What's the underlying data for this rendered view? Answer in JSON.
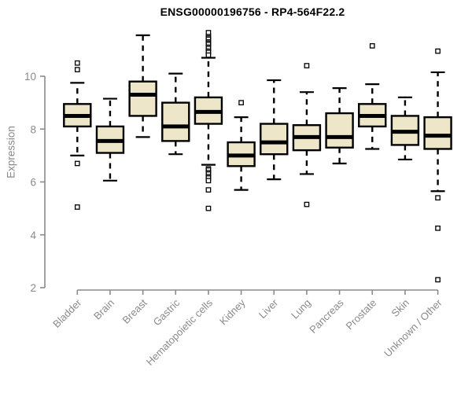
{
  "chart_data": {
    "type": "boxplot",
    "title": "ENSG00000196756 - RP4-564F22.2",
    "ylabel": "Expression",
    "xlabel": "",
    "yticks": [
      2,
      4,
      6,
      8,
      10
    ],
    "ylim": [
      1.9,
      11.9
    ],
    "grid": false,
    "legend": false,
    "categories": [
      "Bladder",
      "Brain",
      "Breast",
      "Gastric",
      "Hematopoietic cells",
      "Kidney",
      "Liver",
      "Lung",
      "Pancreas",
      "Prostate",
      "Skin",
      "Unknown / Other"
    ],
    "series": [
      {
        "name": "Bladder",
        "whisker_low": 7.0,
        "q1": 8.1,
        "median": 8.5,
        "q3": 8.95,
        "whisker_high": 9.75,
        "outliers": [
          10.5,
          10.25,
          6.7,
          5.05
        ]
      },
      {
        "name": "Brain",
        "whisker_low": 6.05,
        "q1": 7.1,
        "median": 7.55,
        "q3": 8.1,
        "whisker_high": 9.15,
        "outliers": []
      },
      {
        "name": "Breast",
        "whisker_low": 7.7,
        "q1": 8.5,
        "median": 9.3,
        "q3": 9.8,
        "whisker_high": 11.55,
        "outliers": []
      },
      {
        "name": "Gastric",
        "whisker_low": 7.05,
        "q1": 7.55,
        "median": 8.1,
        "q3": 9.0,
        "whisker_high": 10.1,
        "outliers": []
      },
      {
        "name": "Hematopoietic cells",
        "whisker_low": 6.65,
        "q1": 8.2,
        "median": 8.65,
        "q3": 9.2,
        "whisker_high": 10.7,
        "outliers": [
          11.65,
          11.5,
          11.45,
          11.4,
          11.3,
          11.25,
          11.2,
          11.1,
          11.05,
          10.95,
          10.9,
          10.8,
          6.5,
          6.45,
          6.35,
          6.3,
          6.2,
          6.15,
          6.05,
          5.7,
          5.0
        ]
      },
      {
        "name": "Kidney",
        "whisker_low": 5.7,
        "q1": 6.6,
        "median": 7.0,
        "q3": 7.5,
        "whisker_high": 8.45,
        "outliers": [
          9.0
        ]
      },
      {
        "name": "Liver",
        "whisker_low": 6.1,
        "q1": 7.05,
        "median": 7.5,
        "q3": 8.2,
        "whisker_high": 9.85,
        "outliers": []
      },
      {
        "name": "Lung",
        "whisker_low": 6.3,
        "q1": 7.2,
        "median": 7.7,
        "q3": 8.15,
        "whisker_high": 9.4,
        "outliers": [
          10.4,
          5.15
        ]
      },
      {
        "name": "Pancreas",
        "whisker_low": 6.7,
        "q1": 7.3,
        "median": 7.7,
        "q3": 8.6,
        "whisker_high": 9.55,
        "outliers": []
      },
      {
        "name": "Prostate",
        "whisker_low": 7.25,
        "q1": 8.1,
        "median": 8.5,
        "q3": 8.95,
        "whisker_high": 9.7,
        "outliers": [
          11.15
        ]
      },
      {
        "name": "Skin",
        "whisker_low": 6.85,
        "q1": 7.4,
        "median": 7.9,
        "q3": 8.5,
        "whisker_high": 9.2,
        "outliers": []
      },
      {
        "name": "Unknown / Other",
        "whisker_low": 5.65,
        "q1": 7.25,
        "median": 7.75,
        "q3": 8.45,
        "whisker_high": 10.15,
        "outliers": [
          10.95,
          5.4,
          4.25,
          2.3
        ]
      }
    ],
    "colors": {
      "box_fill": "#EDE6C9",
      "box_stroke": "#000000",
      "median": "#000000",
      "whisker": "#000000",
      "outlier_stroke": "#000000",
      "axis": "#8A8A8A",
      "label": "#8A8A8A",
      "title": "#000000",
      "background": "#FFFFFF"
    }
  }
}
